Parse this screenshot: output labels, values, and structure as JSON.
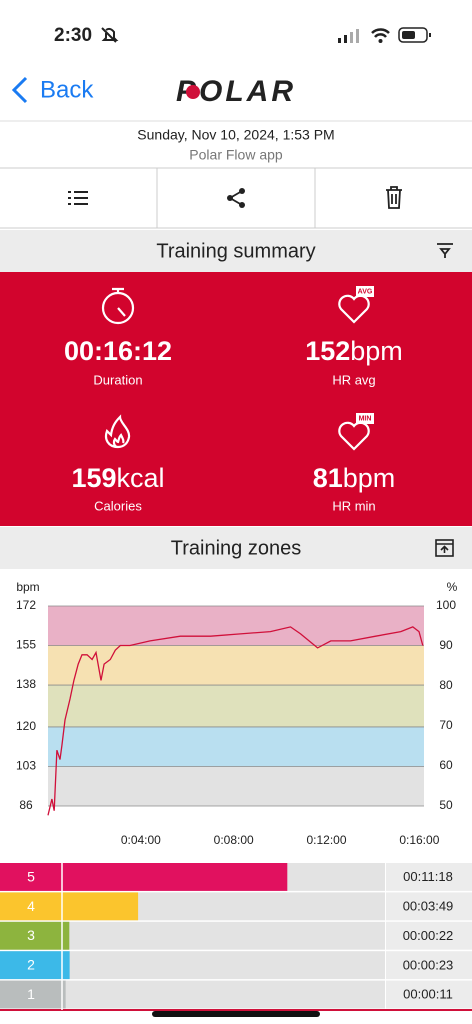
{
  "status_bar": {
    "time": "2:30"
  },
  "nav": {
    "back": "Back",
    "logo": "POLAR"
  },
  "session": {
    "date": "Sunday, Nov 10, 2024, 1:53 PM",
    "source": "Polar Flow app"
  },
  "summary": {
    "title": "Training summary",
    "stats": [
      {
        "value": "00:16:12",
        "label": "Duration"
      },
      {
        "value": "152",
        "unit": "bpm",
        "label": "HR avg",
        "badge": "AVG"
      },
      {
        "value": "159",
        "unit": "kcal",
        "label": "Calories"
      },
      {
        "value": "81",
        "unit": "bpm",
        "label": "HR min",
        "badge": "MIN"
      }
    ]
  },
  "zones": {
    "title": "Training zones"
  },
  "chart_data": [
    {
      "type": "line",
      "y_label": "bpm",
      "y2_label": "%",
      "x": [
        0,
        10,
        16,
        23,
        31,
        36,
        44,
        57,
        67,
        78,
        88,
        101,
        114,
        124,
        137,
        145,
        161,
        174,
        187,
        212,
        264,
        342,
        420,
        497,
        575,
        627,
        653,
        697,
        731,
        782,
        847,
        912,
        943,
        959,
        969
      ],
      "series": [
        {
          "color": "#d0103a",
          "values": [
            82,
            89,
            84,
            110,
            106,
            112,
            123,
            132,
            140,
            147,
            151,
            151,
            149,
            152,
            140,
            147,
            149,
            153,
            155,
            155,
            157,
            159,
            159,
            160,
            161,
            163,
            160,
            154,
            157,
            157,
            159,
            161,
            163,
            161,
            155
          ]
        }
      ],
      "xlim": [
        0,
        972
      ],
      "xticks": [
        {
          "value": 240,
          "label": "0:04:00"
        },
        {
          "value": 480,
          "label": "0:08:00"
        },
        {
          "value": 720,
          "label": "0:12:00"
        },
        {
          "value": 960,
          "label": "0:16:00"
        }
      ],
      "ylim": [
        86,
        172
      ],
      "yticks": [
        86,
        103,
        120,
        138,
        155,
        172
      ],
      "y2lim": [
        50,
        100
      ],
      "y2ticks": [
        50,
        60,
        70,
        80,
        90,
        100
      ],
      "band_colors": [
        "#e2e2e2",
        "#b9dff0",
        "#dfe1bc",
        "#f6e1b2",
        "#e9b1c6"
      ],
      "grid": true
    },
    {
      "type": "hbar",
      "categories": [
        "5",
        "4",
        "3",
        "2",
        "1"
      ],
      "values": [
        678,
        229,
        22,
        23,
        11
      ],
      "value_labels": [
        "00:11:18",
        "00:03:49",
        "00:00:22",
        "00:00:23",
        "00:00:11"
      ],
      "colors": [
        "#e1115f",
        "#fbc52d",
        "#8db43e",
        "#3cb9e8",
        "#b9bdbd"
      ],
      "xlim": [
        0,
        972
      ]
    }
  ]
}
